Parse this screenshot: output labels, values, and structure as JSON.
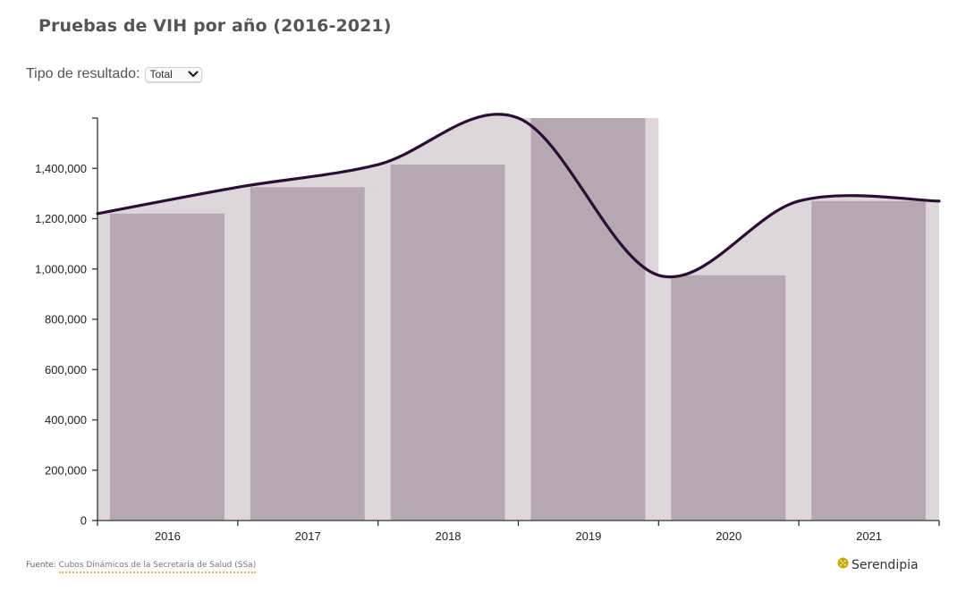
{
  "header": {
    "title": "Pruebas de VIH por año (2016-2021)"
  },
  "filter": {
    "label": "Tipo de resultado:",
    "selected": "Total"
  },
  "footer": {
    "prefix": "Fuente: ",
    "source": "Cubos Dinámicos de la Secretaría de Salud (SSa)"
  },
  "brand": {
    "name": "Serendipia",
    "logo_color": "#c9a800"
  },
  "colors": {
    "bar_fg": "#b5a8b0",
    "bar_bg": "#ddd6da",
    "line": "#2a0f33",
    "axis": "#333333"
  },
  "chart_data": {
    "type": "bar",
    "categories": [
      "2016",
      "2017",
      "2018",
      "2019",
      "2020",
      "2021"
    ],
    "values": [
      1220000,
      1325000,
      1415000,
      1600000,
      975000,
      1270000
    ],
    "smoothed_line": true,
    "ylim": [
      0,
      1600000
    ],
    "yticks": [
      0,
      200000,
      400000,
      600000,
      800000,
      1000000,
      1200000,
      1400000
    ],
    "ytick_labels": [
      "0",
      "200,000",
      "400,000",
      "600,000",
      "800,000",
      "1,000,000",
      "1,200,000",
      "1,400,000"
    ],
    "grid": false,
    "legend": "none"
  }
}
